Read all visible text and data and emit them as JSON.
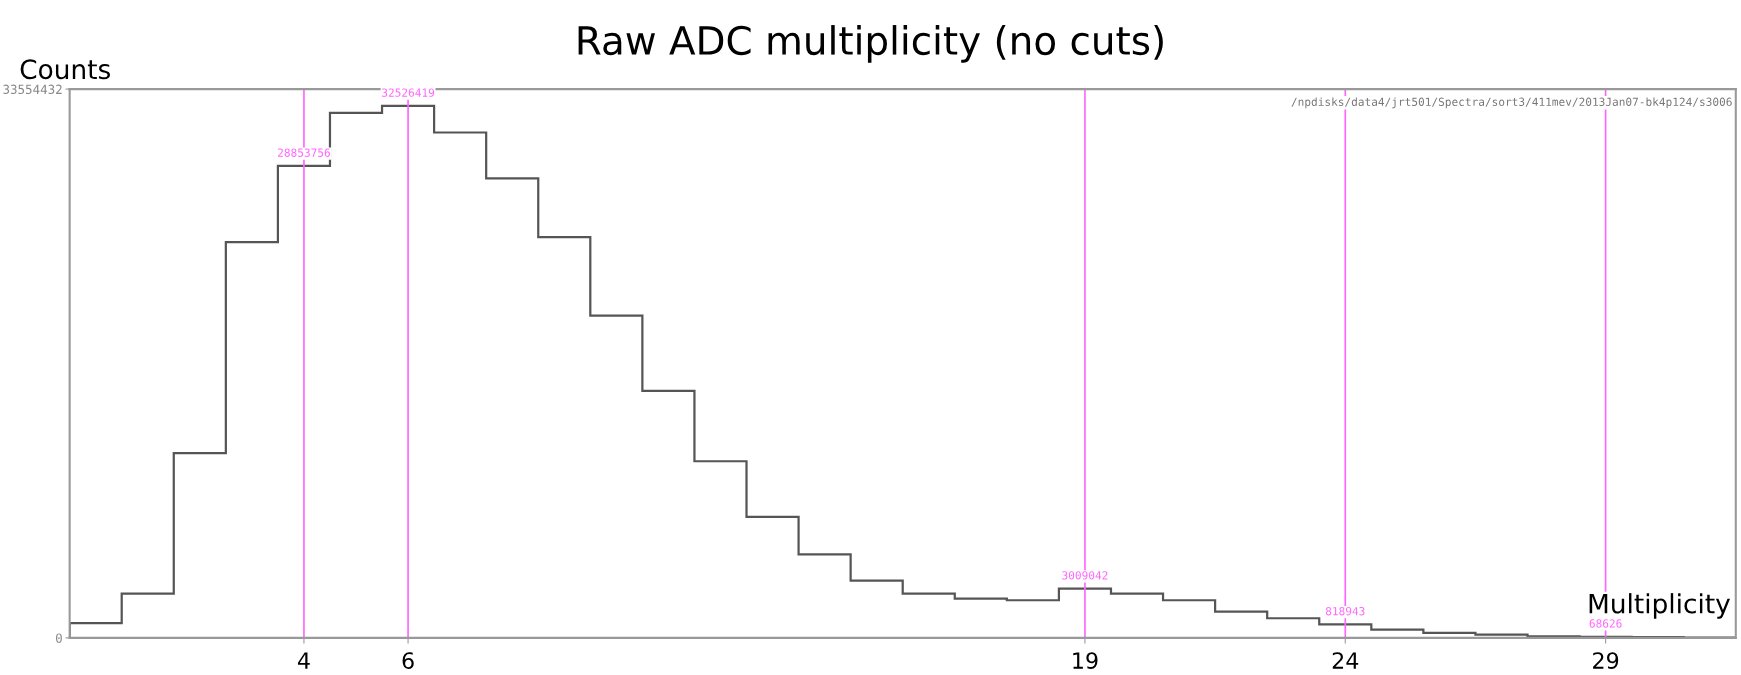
{
  "chart_data": {
    "type": "histogram",
    "title": "Raw ADC multiplicity (no cuts)",
    "xlabel": "Multiplicity",
    "ylabel": "Counts",
    "bins": [
      -0.5,
      0.5,
      1.5,
      2.5,
      3.5,
      4.5,
      5.5,
      6.5,
      7.5,
      8.5,
      9.5,
      10.5,
      11.5,
      12.5,
      13.5,
      14.5,
      15.5,
      16.5,
      17.5,
      18.5,
      19.5,
      20.5,
      21.5,
      22.5,
      23.5,
      24.5,
      25.5,
      26.5,
      27.5,
      28.5,
      29.5,
      30.5,
      31.5
    ],
    "values": [
      900000,
      2700000,
      11300000,
      24200000,
      28853756,
      32100000,
      32526419,
      30900000,
      28100000,
      24500000,
      19700000,
      15100000,
      10800000,
      7400000,
      5100000,
      3500000,
      2700000,
      2400000,
      2300000,
      3009042,
      2700000,
      2300000,
      1600000,
      1200000,
      818943,
      500000,
      300000,
      200000,
      100000,
      68626,
      50000,
      20000
    ],
    "color": "#555555",
    "xlim": [
      -0.5,
      31.5
    ],
    "ylim": [
      0,
      33554432
    ],
    "xticks": [
      4,
      6,
      19,
      24,
      29
    ],
    "yticks": [
      0,
      33554432
    ],
    "ref_lines": [
      {
        "axis": "x",
        "value": 4,
        "color": "#ff66ff"
      },
      {
        "axis": "x",
        "value": 6,
        "color": "#ff66ff"
      },
      {
        "axis": "x",
        "value": 19,
        "color": "#ff66ff"
      },
      {
        "axis": "x",
        "value": 24,
        "color": "#ff66ff"
      },
      {
        "axis": "x",
        "value": 29,
        "color": "#ff66ff"
      }
    ],
    "annotations": [
      "/npdisks/data4/jrt501/Spectra/sort3/411mev/2013Jan07-bk4p124/s3006",
      {
        "text": "28853756",
        "x": 4,
        "y": 28853756
      },
      {
        "text": "32526419",
        "x": 6,
        "y": 32526419
      },
      {
        "text": "3009042",
        "x": 19,
        "y": 3009042
      },
      {
        "text": "818943",
        "x": 24,
        "y": 818943
      },
      {
        "text": "68626",
        "x": 29,
        "y": 68626
      }
    ],
    "grid": false,
    "legend": false
  }
}
